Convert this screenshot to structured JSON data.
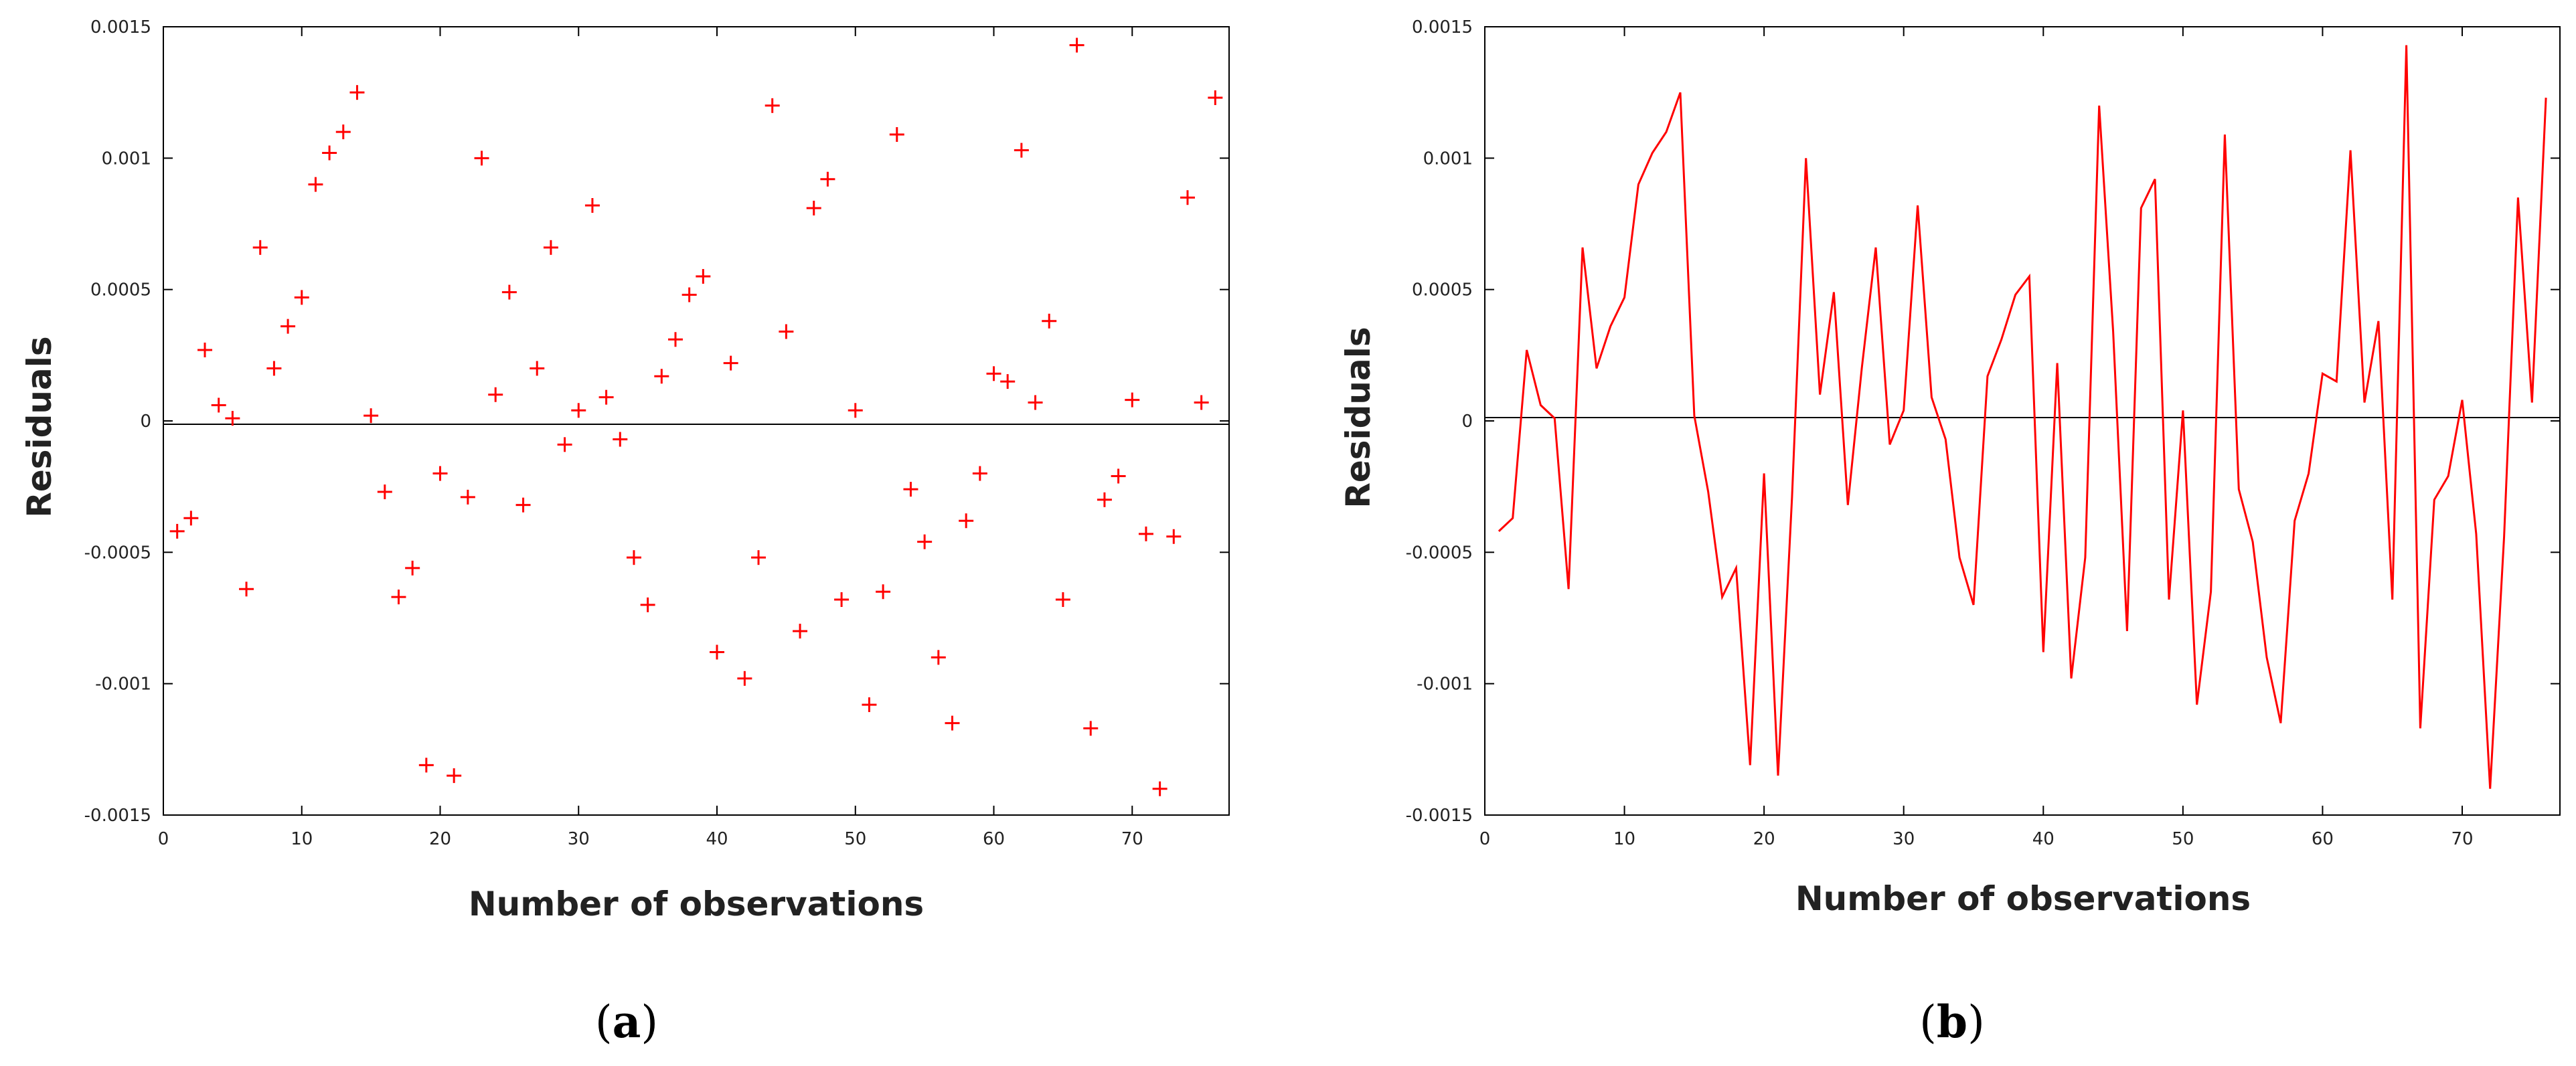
{
  "chart_data": [
    {
      "type": "scatter",
      "caption": "(a)",
      "xlabel": "Number of observations",
      "ylabel": "Residuals",
      "xlim": [
        0,
        77
      ],
      "ylim": [
        -0.0015,
        0.0015
      ],
      "xticks": [
        "0",
        "10",
        "20",
        "30",
        "40",
        "50",
        "60",
        "70"
      ],
      "yticks": [
        "-0.0015",
        "-0.001",
        "-0.0005",
        "0",
        "0.0005",
        "0.001",
        "0.0015"
      ],
      "grid": false,
      "marker_color": "#ff0000",
      "zero_line": 0,
      "x": [
        1,
        2,
        3,
        4,
        5,
        6,
        7,
        8,
        9,
        10,
        11,
        12,
        13,
        14,
        15,
        16,
        17,
        18,
        19,
        20,
        21,
        22,
        23,
        24,
        25,
        26,
        27,
        28,
        29,
        30,
        31,
        32,
        33,
        34,
        35,
        36,
        37,
        38,
        39,
        40,
        41,
        42,
        43,
        44,
        45,
        46,
        47,
        48,
        49,
        50,
        51,
        52,
        53,
        54,
        55,
        56,
        57,
        58,
        59,
        60,
        61,
        62,
        63,
        64,
        65,
        66,
        67,
        68,
        69,
        70,
        71,
        72,
        73,
        74,
        75,
        76
      ],
      "values": [
        -0.00042,
        -0.00037,
        0.00027,
        6e-05,
        1e-05,
        -0.00064,
        0.00066,
        0.0002,
        0.00036,
        0.00047,
        0.0009,
        0.00102,
        0.0011,
        0.00125,
        2e-05,
        -0.00027,
        -0.00067,
        -0.00056,
        -0.00131,
        -0.0002,
        -0.00135,
        -0.00029,
        0.001,
        0.0001,
        0.00049,
        -0.00032,
        0.0002,
        0.00066,
        -9e-05,
        4e-05,
        0.00082,
        9e-05,
        -7e-05,
        -0.00052,
        -0.0007,
        0.00017,
        0.00031,
        0.00048,
        0.00055,
        -0.00088,
        0.00022,
        -0.00098,
        -0.00052,
        0.0012,
        0.00034,
        -0.0008,
        0.00081,
        0.00092,
        -0.00068,
        4e-05,
        -0.00108,
        -0.00065,
        0.00109,
        -0.00026,
        -0.00046,
        -0.0009,
        -0.00115,
        -0.00038,
        -0.0002,
        0.00018,
        0.00015,
        0.00103,
        7e-05,
        0.00038,
        -0.00068,
        0.00143,
        -0.00117,
        -0.0003,
        -0.00021,
        8e-05,
        -0.00043,
        -0.0014,
        -0.00044,
        0.00085,
        7e-05,
        0.00123
      ]
    },
    {
      "type": "line",
      "caption": "(b)",
      "xlabel": "Number of observations",
      "ylabel": "Residuals",
      "xlim": [
        0,
        77
      ],
      "ylim": [
        -0.0015,
        0.0015
      ],
      "xticks": [
        "0",
        "10",
        "20",
        "30",
        "40",
        "50",
        "60",
        "70"
      ],
      "yticks": [
        "-0.0015",
        "-0.001",
        "-0.0005",
        "0",
        "0.0005",
        "0.001",
        "0.0015"
      ],
      "grid": false,
      "line_color": "#ff0000",
      "zero_line": 0,
      "x": [
        1,
        2,
        3,
        4,
        5,
        6,
        7,
        8,
        9,
        10,
        11,
        12,
        13,
        14,
        15,
        16,
        17,
        18,
        19,
        20,
        21,
        22,
        23,
        24,
        25,
        26,
        27,
        28,
        29,
        30,
        31,
        32,
        33,
        34,
        35,
        36,
        37,
        38,
        39,
        40,
        41,
        42,
        43,
        44,
        45,
        46,
        47,
        48,
        49,
        50,
        51,
        52,
        53,
        54,
        55,
        56,
        57,
        58,
        59,
        60,
        61,
        62,
        63,
        64,
        65,
        66,
        67,
        68,
        69,
        70,
        71,
        72,
        73,
        74,
        75,
        76
      ],
      "values": [
        -0.00042,
        -0.00037,
        0.00027,
        6e-05,
        1e-05,
        -0.00064,
        0.00066,
        0.0002,
        0.00036,
        0.00047,
        0.0009,
        0.00102,
        0.0011,
        0.00125,
        2e-05,
        -0.00027,
        -0.00067,
        -0.00056,
        -0.00131,
        -0.0002,
        -0.00135,
        -0.00029,
        0.001,
        0.0001,
        0.00049,
        -0.00032,
        0.0002,
        0.00066,
        -9e-05,
        4e-05,
        0.00082,
        9e-05,
        -7e-05,
        -0.00052,
        -0.0007,
        0.00017,
        0.00031,
        0.00048,
        0.00055,
        -0.00088,
        0.00022,
        -0.00098,
        -0.00052,
        0.0012,
        0.00034,
        -0.0008,
        0.00081,
        0.00092,
        -0.00068,
        4e-05,
        -0.00108,
        -0.00065,
        0.00109,
        -0.00026,
        -0.00046,
        -0.0009,
        -0.00115,
        -0.00038,
        -0.0002,
        0.00018,
        0.00015,
        0.00103,
        7e-05,
        0.00038,
        -0.00068,
        0.00143,
        -0.00117,
        -0.0003,
        -0.00021,
        8e-05,
        -0.00043,
        -0.0014,
        -0.00044,
        0.00085,
        7e-05,
        0.00123
      ]
    }
  ]
}
